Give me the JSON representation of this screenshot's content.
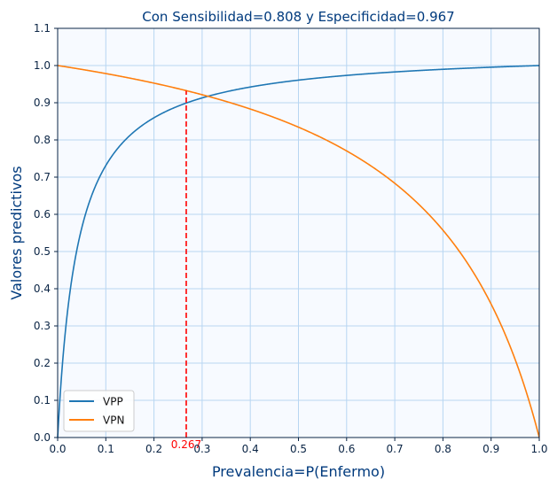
{
  "chart_data": {
    "type": "line",
    "title": "Con Sensibilidad=0.808 y Especificidad=0.967",
    "xlabel": "Prevalencia=P(Enfermo)",
    "ylabel": "Valores predictivos",
    "xlim": [
      0,
      1
    ],
    "ylim": [
      0,
      1.1
    ],
    "xticks": [
      "0.0",
      "0.1",
      "0.2",
      "0.3",
      "0.4",
      "0.5",
      "0.6",
      "0.7",
      "0.8",
      "0.9",
      "1.0"
    ],
    "yticks": [
      "0.0",
      "0.1",
      "0.2",
      "0.3",
      "0.4",
      "0.5",
      "0.6",
      "0.7",
      "0.8",
      "0.9",
      "1.0",
      "1.1"
    ],
    "grid": true,
    "legend_position": "lower-left",
    "sensitivity": 0.808,
    "specificity": 0.967,
    "x": [
      0,
      0.1,
      0.2,
      0.3,
      0.4,
      0.5,
      0.6,
      0.7,
      0.8,
      0.9,
      1.0
    ],
    "series": [
      {
        "name": "VPP",
        "color": "#1f77b4",
        "values": [
          0,
          0.731,
          0.86,
          0.913,
          0.942,
          0.961,
          0.973,
          0.983,
          0.99,
          0.995,
          1.0
        ]
      },
      {
        "name": "VPN",
        "color": "#ff7f0e",
        "values": [
          1.0,
          0.978,
          0.953,
          0.922,
          0.883,
          0.834,
          0.771,
          0.683,
          0.557,
          0.359,
          0
        ]
      }
    ],
    "annotation": {
      "x": 0.267,
      "y": 0.932,
      "label": "0.267",
      "color": "#ff0000"
    }
  }
}
